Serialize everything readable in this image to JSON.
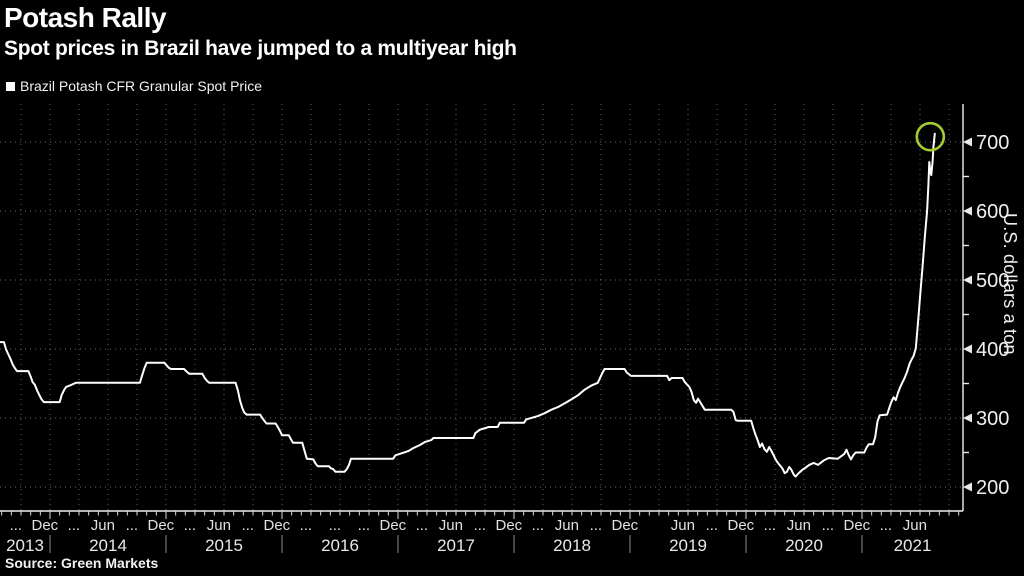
{
  "header": {
    "title": "Potash Rally",
    "subtitle": "Spot prices in Brazil have jumped to a multiyear high"
  },
  "legend": {
    "label": "Brazil Potash CFR Granular Spot Price",
    "marker_color": "#ffffff"
  },
  "source": "Source: Green Markets",
  "y_axis": {
    "unit_label": "U.S. dollars a ton",
    "ticks": [
      200,
      300,
      400,
      500,
      600,
      700
    ],
    "minor_ticks": [
      250,
      350,
      450,
      550,
      650
    ]
  },
  "x_axis": {
    "years": [
      "2013",
      "2014",
      "2015",
      "2016",
      "2017",
      "2018",
      "2019",
      "2020",
      "2021"
    ],
    "month_labels": [
      [
        "2013-09",
        "..."
      ],
      [
        "2013-12",
        "Dec"
      ],
      [
        "2014-03",
        "..."
      ],
      [
        "2014-06",
        "Jun"
      ],
      [
        "2014-09",
        "..."
      ],
      [
        "2014-12",
        "Dec"
      ],
      [
        "2015-03",
        "..."
      ],
      [
        "2015-06",
        "Jun"
      ],
      [
        "2015-09",
        "..."
      ],
      [
        "2015-12",
        "Dec"
      ],
      [
        "2016-03",
        "..."
      ],
      [
        "2016-06",
        "..."
      ],
      [
        "2016-09",
        "..."
      ],
      [
        "2016-12",
        "Dec"
      ],
      [
        "2017-03",
        "..."
      ],
      [
        "2017-06",
        "Jun"
      ],
      [
        "2017-09",
        "..."
      ],
      [
        "2017-12",
        "Dec"
      ],
      [
        "2018-03",
        "..."
      ],
      [
        "2018-06",
        "Jun"
      ],
      [
        "2018-09",
        "..."
      ],
      [
        "2018-12",
        "Dec"
      ],
      [
        "2019-06",
        "Jun"
      ],
      [
        "2019-09",
        "..."
      ],
      [
        "2019-12",
        "Dec"
      ],
      [
        "2020-03",
        "..."
      ],
      [
        "2020-06",
        "Jun"
      ],
      [
        "2020-09",
        "..."
      ],
      [
        "2020-12",
        "Dec"
      ],
      [
        "2021-03",
        "..."
      ],
      [
        "2021-06",
        "Jun"
      ]
    ]
  },
  "annotation": {
    "shape": "circle",
    "color": "#a3cd30",
    "marks": "latest spike high near 700"
  },
  "chart_data": {
    "type": "line",
    "title": "Potash Rally",
    "subtitle": "Spot prices in Brazil have jumped to a multiyear high",
    "ylabel": "U.S. dollars a ton",
    "ylim": [
      170,
      735
    ],
    "x_range": [
      "2013-07",
      "2021-11"
    ],
    "grid": "dotted, horizontal every 100, vertical quarterly",
    "legend_position": "top-left",
    "series": [
      {
        "name": "Brazil Potash CFR Granular Spot Price",
        "color": "#ffffff",
        "points": [
          [
            "2013-07-26",
            410
          ],
          [
            "2013-08-08",
            410
          ],
          [
            "2013-08-15",
            399
          ],
          [
            "2013-08-22",
            392
          ],
          [
            "2013-08-29",
            385
          ],
          [
            "2013-09-05",
            378
          ],
          [
            "2013-09-12",
            372
          ],
          [
            "2013-09-19",
            368
          ],
          [
            "2013-10-24",
            368
          ],
          [
            "2013-10-31",
            360
          ],
          [
            "2013-11-07",
            352
          ],
          [
            "2013-11-14",
            348
          ],
          [
            "2013-11-21",
            340
          ],
          [
            "2013-11-28",
            333
          ],
          [
            "2013-12-05",
            327
          ],
          [
            "2013-12-12",
            323
          ],
          [
            "2014-01-31",
            323
          ],
          [
            "2014-02-07",
            333
          ],
          [
            "2014-02-14",
            340
          ],
          [
            "2014-02-21",
            345
          ],
          [
            "2014-03-07",
            348
          ],
          [
            "2014-03-21",
            351
          ],
          [
            "2014-10-10",
            351
          ],
          [
            "2014-10-17",
            362
          ],
          [
            "2014-10-24",
            372
          ],
          [
            "2014-10-31",
            380
          ],
          [
            "2014-12-26",
            380
          ],
          [
            "2015-01-09",
            373
          ],
          [
            "2015-01-16",
            371
          ],
          [
            "2015-02-27",
            371
          ],
          [
            "2015-03-06",
            367
          ],
          [
            "2015-03-13",
            364
          ],
          [
            "2015-04-24",
            364
          ],
          [
            "2015-05-01",
            358
          ],
          [
            "2015-05-08",
            354
          ],
          [
            "2015-05-15",
            351
          ],
          [
            "2015-08-07",
            351
          ],
          [
            "2015-08-14",
            340
          ],
          [
            "2015-08-21",
            325
          ],
          [
            "2015-08-28",
            314
          ],
          [
            "2015-09-04",
            308
          ],
          [
            "2015-09-11",
            305
          ],
          [
            "2015-10-23",
            305
          ],
          [
            "2015-10-30",
            300
          ],
          [
            "2015-11-06",
            296
          ],
          [
            "2015-11-13",
            292
          ],
          [
            "2015-12-11",
            292
          ],
          [
            "2015-12-18",
            287
          ],
          [
            "2015-12-25",
            281
          ],
          [
            "2016-01-01",
            275
          ],
          [
            "2016-01-22",
            275
          ],
          [
            "2016-01-29",
            269
          ],
          [
            "2016-02-05",
            264
          ],
          [
            "2016-03-04",
            264
          ],
          [
            "2016-03-11",
            252
          ],
          [
            "2016-03-18",
            241
          ],
          [
            "2016-04-08",
            240
          ],
          [
            "2016-04-15",
            234
          ],
          [
            "2016-04-22",
            230
          ],
          [
            "2016-05-27",
            230
          ],
          [
            "2016-06-03",
            227
          ],
          [
            "2016-06-10",
            226
          ],
          [
            "2016-06-17",
            222
          ],
          [
            "2016-07-15",
            222
          ],
          [
            "2016-07-22",
            226
          ],
          [
            "2016-07-29",
            232
          ],
          [
            "2016-08-05",
            241
          ],
          [
            "2016-12-16",
            241
          ],
          [
            "2016-12-23",
            246
          ],
          [
            "2017-01-13",
            249
          ],
          [
            "2017-02-03",
            252
          ],
          [
            "2017-02-17",
            256
          ],
          [
            "2017-03-10",
            261
          ],
          [
            "2017-03-24",
            265
          ],
          [
            "2017-04-14",
            268
          ],
          [
            "2017-04-21",
            271
          ],
          [
            "2017-08-25",
            271
          ],
          [
            "2017-09-01",
            278
          ],
          [
            "2017-09-15",
            283
          ],
          [
            "2017-10-13",
            287
          ],
          [
            "2017-11-10",
            287
          ],
          [
            "2017-11-17",
            293
          ],
          [
            "2018-02-02",
            293
          ],
          [
            "2018-02-09",
            298
          ],
          [
            "2018-03-16",
            303
          ],
          [
            "2018-04-06",
            307
          ],
          [
            "2018-04-27",
            312
          ],
          [
            "2018-05-18",
            316
          ],
          [
            "2018-06-15",
            323
          ],
          [
            "2018-07-06",
            329
          ],
          [
            "2018-07-20",
            333
          ],
          [
            "2018-08-10",
            341
          ],
          [
            "2018-08-31",
            347
          ],
          [
            "2018-09-21",
            351
          ],
          [
            "2018-09-28",
            358
          ],
          [
            "2018-10-05",
            365
          ],
          [
            "2018-10-12",
            371
          ],
          [
            "2018-12-14",
            371
          ],
          [
            "2018-12-21",
            366
          ],
          [
            "2019-01-04",
            361
          ],
          [
            "2019-04-26",
            361
          ],
          [
            "2019-05-03",
            355
          ],
          [
            "2019-05-10",
            358
          ],
          [
            "2019-06-14",
            358
          ],
          [
            "2019-06-21",
            352
          ],
          [
            "2019-07-05",
            345
          ],
          [
            "2019-07-12",
            338
          ],
          [
            "2019-07-19",
            326
          ],
          [
            "2019-07-26",
            322
          ],
          [
            "2019-08-02",
            328
          ],
          [
            "2019-08-09",
            323
          ],
          [
            "2019-08-23",
            312
          ],
          [
            "2019-11-15",
            312
          ],
          [
            "2019-11-22",
            309
          ],
          [
            "2019-11-29",
            297
          ],
          [
            "2019-12-06",
            296
          ],
          [
            "2020-01-17",
            296
          ],
          [
            "2020-01-24",
            285
          ],
          [
            "2020-01-31",
            275
          ],
          [
            "2020-02-07",
            268
          ],
          [
            "2020-02-14",
            258
          ],
          [
            "2020-02-21",
            263
          ],
          [
            "2020-02-28",
            255
          ],
          [
            "2020-03-06",
            251
          ],
          [
            "2020-03-13",
            258
          ],
          [
            "2020-03-20",
            252
          ],
          [
            "2020-03-27",
            246
          ],
          [
            "2020-04-03",
            240
          ],
          [
            "2020-04-10",
            235
          ],
          [
            "2020-04-24",
            227
          ],
          [
            "2020-05-01",
            220
          ],
          [
            "2020-05-08",
            222
          ],
          [
            "2020-05-15",
            229
          ],
          [
            "2020-05-22",
            225
          ],
          [
            "2020-05-29",
            218
          ],
          [
            "2020-06-05",
            215
          ],
          [
            "2020-06-12",
            219
          ],
          [
            "2020-06-26",
            225
          ],
          [
            "2020-07-03",
            227
          ],
          [
            "2020-07-17",
            232
          ],
          [
            "2020-07-31",
            235
          ],
          [
            "2020-08-14",
            232
          ],
          [
            "2020-09-04",
            239
          ],
          [
            "2020-09-18",
            242
          ],
          [
            "2020-10-16",
            241
          ],
          [
            "2020-11-06",
            248
          ],
          [
            "2020-11-13",
            254
          ],
          [
            "2020-11-20",
            246
          ],
          [
            "2020-11-27",
            240
          ],
          [
            "2020-12-04",
            246
          ],
          [
            "2020-12-11",
            250
          ],
          [
            "2021-01-08",
            250
          ],
          [
            "2021-01-15",
            257
          ],
          [
            "2021-01-22",
            262
          ],
          [
            "2021-02-05",
            262
          ],
          [
            "2021-02-12",
            272
          ],
          [
            "2021-02-19",
            295
          ],
          [
            "2021-02-26",
            304
          ],
          [
            "2021-03-19",
            305
          ],
          [
            "2021-03-26",
            315
          ],
          [
            "2021-04-02",
            323
          ],
          [
            "2021-04-09",
            330
          ],
          [
            "2021-04-16",
            326
          ],
          [
            "2021-04-23",
            337
          ],
          [
            "2021-04-30",
            345
          ],
          [
            "2021-05-07",
            352
          ],
          [
            "2021-05-14",
            359
          ],
          [
            "2021-05-21",
            367
          ],
          [
            "2021-05-28",
            378
          ],
          [
            "2021-06-04",
            384
          ],
          [
            "2021-06-11",
            390
          ],
          [
            "2021-06-18",
            401
          ],
          [
            "2021-06-25",
            440
          ],
          [
            "2021-07-02",
            480
          ],
          [
            "2021-07-09",
            520
          ],
          [
            "2021-07-16",
            562
          ],
          [
            "2021-07-23",
            600
          ],
          [
            "2021-07-27",
            638
          ],
          [
            "2021-07-30",
            671
          ],
          [
            "2021-08-03",
            657
          ],
          [
            "2021-08-06",
            652
          ],
          [
            "2021-08-10",
            672
          ],
          [
            "2021-08-13",
            694
          ],
          [
            "2021-08-17",
            712
          ]
        ]
      }
    ]
  }
}
